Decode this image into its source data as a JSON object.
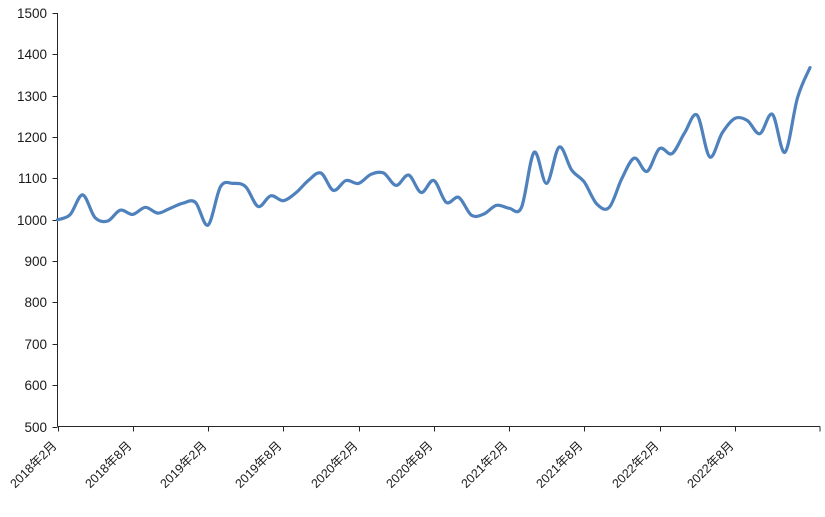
{
  "colors": {
    "line": "#4f81bd",
    "axis": "#262626",
    "text": "#1a1a1a",
    "background": "#ffffff"
  },
  "chart_data": {
    "type": "line",
    "title": "",
    "xlabel": "",
    "ylabel": "",
    "grid": false,
    "legend": "none",
    "line_style": "smooth",
    "ylim": [
      500,
      1500
    ],
    "ytick_step": 100,
    "y_tick_labels": [
      "500",
      "600",
      "700",
      "800",
      "900",
      "1000",
      "1100",
      "1200",
      "1300",
      "1400",
      "1500"
    ],
    "x_label_interval": 6,
    "x_tick_labels": [
      "2018年2月",
      "2018年8月",
      "2019年2月",
      "2019年8月",
      "2020年2月",
      "2020年8月",
      "2021年2月",
      "2021年8月",
      "2022年2月",
      "2022年8月"
    ],
    "categories": [
      "2018年2月",
      "2018年3月",
      "2018年4月",
      "2018年5月",
      "2018年6月",
      "2018年7月",
      "2018年8月",
      "2018年9月",
      "2018年10月",
      "2018年11月",
      "2018年12月",
      "2019年1月",
      "2019年2月",
      "2019年3月",
      "2019年4月",
      "2019年5月",
      "2019年6月",
      "2019年7月",
      "2019年8月",
      "2019年9月",
      "2019年10月",
      "2019年11月",
      "2019年12月",
      "2020年1月",
      "2020年2月",
      "2020年3月",
      "2020年4月",
      "2020年5月",
      "2020年6月",
      "2020年7月",
      "2020年8月",
      "2020年9月",
      "2020年10月",
      "2020年11月",
      "2020年12月",
      "2021年1月",
      "2021年2月",
      "2021年3月",
      "2021年4月",
      "2021年5月",
      "2021年6月",
      "2021年7月",
      "2021年8月",
      "2021年9月",
      "2021年10月",
      "2021年11月",
      "2021年12月",
      "2022年1月",
      "2022年2月",
      "2022年3月",
      "2022年4月",
      "2022年5月",
      "2022年6月",
      "2022年7月",
      "2022年8月",
      "2022年9月",
      "2022年10月",
      "2022年11月",
      "2022年12月",
      "2023年1月",
      "2023年2月"
    ],
    "series": [
      {
        "name": "series-1",
        "color": "#4f81bd",
        "values": [
          1000,
          1012,
          1060,
          1005,
          997,
          1023,
          1013,
          1030,
          1016,
          1028,
          1040,
          1042,
          987,
          1080,
          1088,
          1080,
          1032,
          1058,
          1046,
          1065,
          1095,
          1113,
          1071,
          1095,
          1088,
          1110,
          1113,
          1083,
          1108,
          1066,
          1095,
          1042,
          1054,
          1011,
          1014,
          1035,
          1028,
          1030,
          1163,
          1088,
          1176,
          1120,
          1091,
          1038,
          1030,
          1100,
          1149,
          1117,
          1172,
          1160,
          1210,
          1253,
          1152,
          1210,
          1245,
          1240,
          1208,
          1255,
          1163,
          1295,
          1368
        ]
      }
    ]
  }
}
